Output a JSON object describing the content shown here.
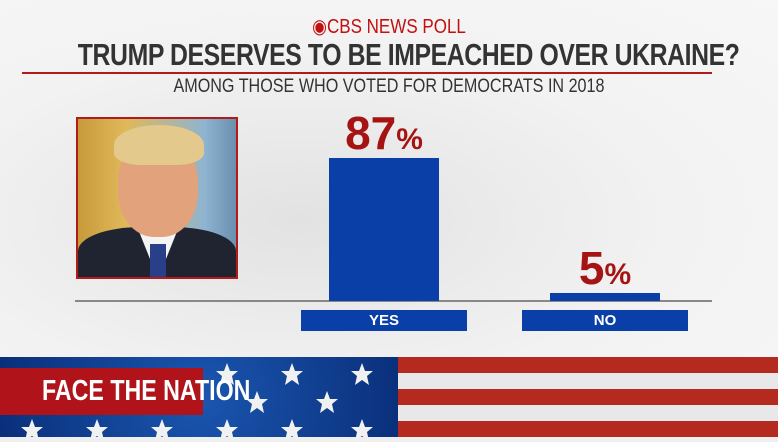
{
  "header": {
    "brand": "CBS NEWS POLL",
    "headline": "TRUMP DESERVES TO BE IMPEACHED OVER UKRAINE?",
    "subtitle": "AMONG THOSE WHO VOTED FOR DEMOCRATS IN 2018"
  },
  "footer": {
    "show_logo": "FACE THE NATION"
  },
  "colors": {
    "bar": "#0b3fa8",
    "value": "#a51313",
    "rule": "#b31b1b"
  },
  "chart_data": {
    "type": "bar",
    "title": "TRUMP DESERVES TO BE IMPEACHED OVER UKRAINE?",
    "subtitle": "AMONG THOSE WHO VOTED FOR DEMOCRATS IN 2018",
    "categories": [
      "YES",
      "NO"
    ],
    "values": [
      87,
      5
    ],
    "value_labels": [
      "87",
      "5"
    ],
    "unit": "%",
    "ylim": [
      0,
      100
    ],
    "grid": false
  }
}
